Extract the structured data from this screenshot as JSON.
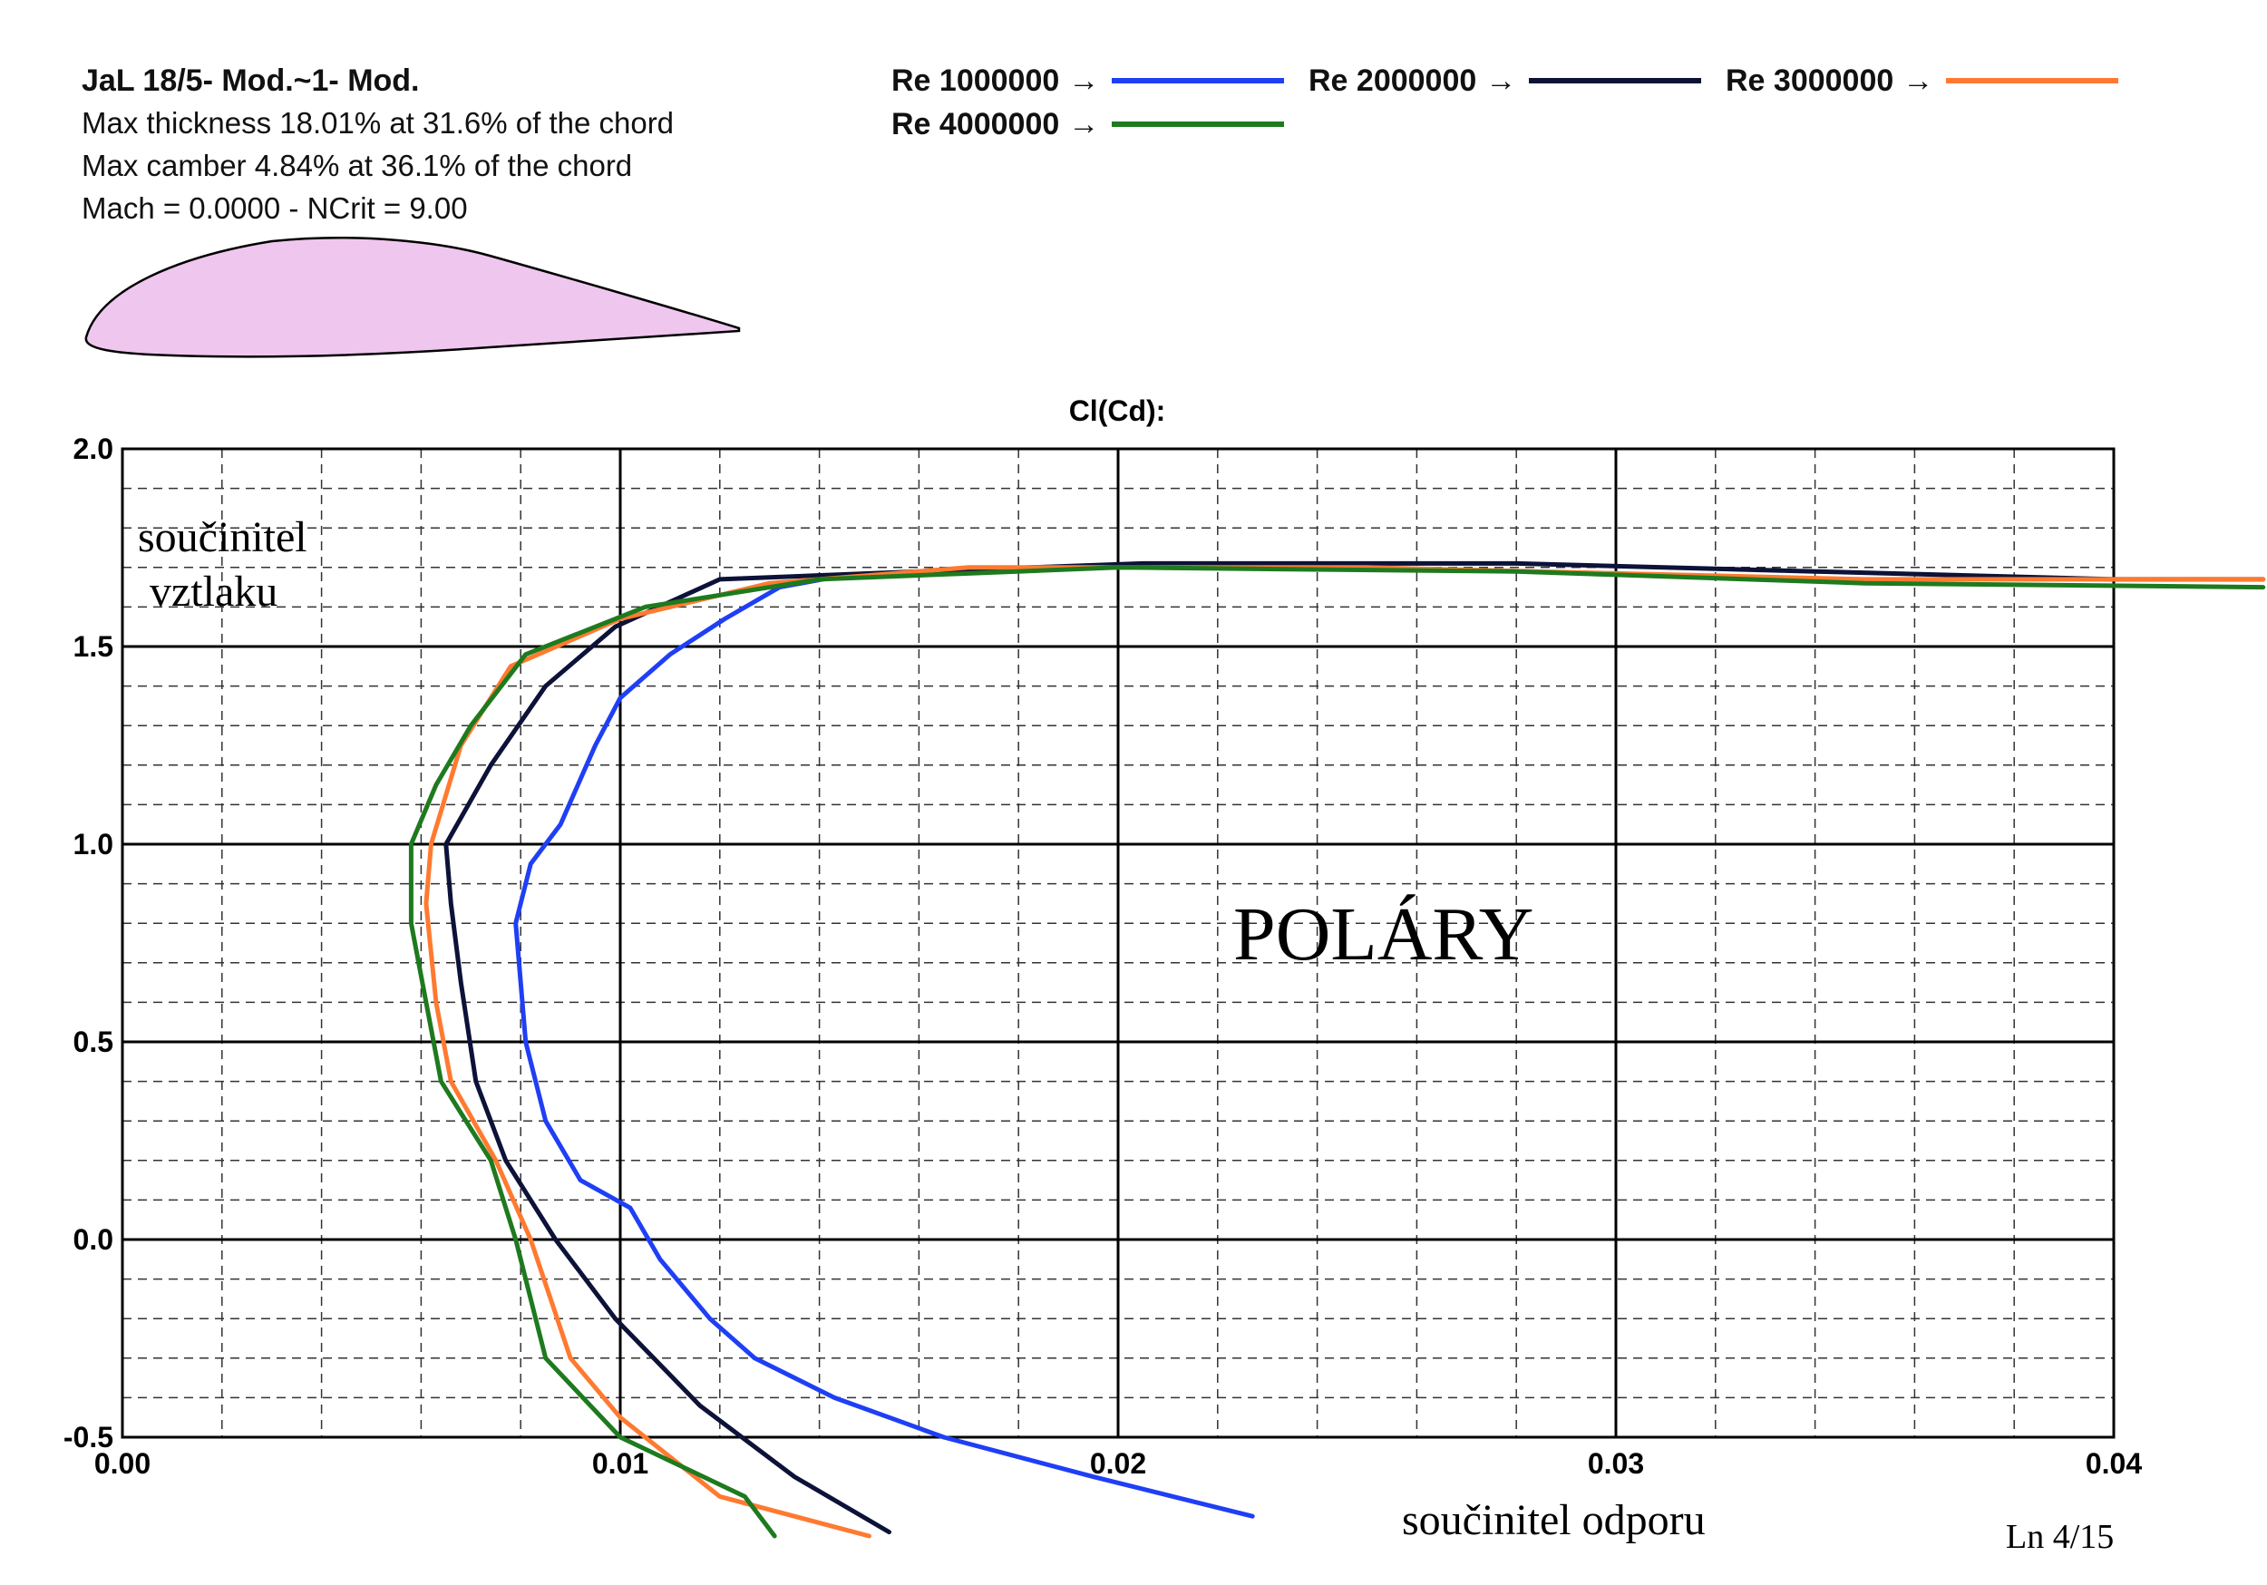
{
  "info": {
    "airfoil_name": "JaL 18/5- Mod.~1- Mod.",
    "thickness_line": "Max thickness 18.01% at 31.6% of the chord",
    "camber_line": "Max camber 4.84% at 36.1% of the chord",
    "conditions_line": "Mach = 0.0000 - NCrit = 9.00",
    "airfoil_fill": "#efc6ee"
  },
  "legend": [
    {
      "label": "Re 1000000",
      "color": "#1f3ff5"
    },
    {
      "label": "Re 2000000",
      "color": "#0c1238"
    },
    {
      "label": "Re 3000000",
      "color": "#ff7a30"
    },
    {
      "label": "Re 4000000",
      "color": "#1e7a1e"
    }
  ],
  "annotations": {
    "ylabel_line1": "součinitel",
    "ylabel_line2": "vztlaku",
    "xlabel": "součinitel  odporu",
    "center_label": "POLÁRY",
    "corner_label": "Ln 4/15"
  },
  "chart_data": {
    "type": "line",
    "title": "Cl(Cd):",
    "xlim": [
      0,
      0.04
    ],
    "ylim": [
      -0.5,
      2.0
    ],
    "x_ticks": [
      0.0,
      0.01,
      0.02,
      0.03,
      0.04
    ],
    "x_tick_labels": [
      "0.00",
      "0.01",
      "0.02",
      "0.03",
      "0.04"
    ],
    "y_ticks": [
      -0.5,
      0.0,
      0.5,
      1.0,
      1.5,
      2.0
    ],
    "y_tick_labels": [
      "-0.5",
      "0.0",
      "0.5",
      "1.0",
      "1.5",
      "2.0"
    ],
    "grid": true,
    "series": [
      {
        "name": "Re 1000000",
        "color": "#1f3ff5",
        "points": [
          [
            0.0227,
            -0.7
          ],
          [
            0.0195,
            -0.6
          ],
          [
            0.0165,
            -0.5
          ],
          [
            0.0143,
            -0.4
          ],
          [
            0.0127,
            -0.3
          ],
          [
            0.0118,
            -0.2
          ],
          [
            0.0108,
            -0.05
          ],
          [
            0.0102,
            0.08
          ],
          [
            0.0092,
            0.15
          ],
          [
            0.0085,
            0.3
          ],
          [
            0.0081,
            0.5
          ],
          [
            0.0079,
            0.8
          ],
          [
            0.0082,
            0.95
          ],
          [
            0.0088,
            1.05
          ],
          [
            0.0095,
            1.25
          ],
          [
            0.01,
            1.37
          ],
          [
            0.011,
            1.48
          ],
          [
            0.0121,
            1.57
          ],
          [
            0.0132,
            1.65
          ],
          [
            0.0145,
            1.68
          ],
          [
            0.0165,
            1.69
          ]
        ]
      },
      {
        "name": "Re 2000000",
        "color": "#0c1238",
        "points": [
          [
            0.0154,
            -0.74
          ],
          [
            0.0135,
            -0.6
          ],
          [
            0.0116,
            -0.42
          ],
          [
            0.0099,
            -0.2
          ],
          [
            0.0087,
            0.0
          ],
          [
            0.0077,
            0.2
          ],
          [
            0.0071,
            0.4
          ],
          [
            0.0068,
            0.65
          ],
          [
            0.0066,
            0.85
          ],
          [
            0.0065,
            1.0
          ],
          [
            0.0074,
            1.2
          ],
          [
            0.0085,
            1.4
          ],
          [
            0.0099,
            1.55
          ],
          [
            0.012,
            1.67
          ],
          [
            0.016,
            1.69
          ],
          [
            0.0205,
            1.71
          ],
          [
            0.028,
            1.71
          ],
          [
            0.034,
            1.69
          ],
          [
            0.04,
            1.67
          ],
          [
            0.043,
            1.67
          ]
        ]
      },
      {
        "name": "Re 3000000",
        "color": "#ff7a30",
        "points": [
          [
            0.015,
            -0.75
          ],
          [
            0.012,
            -0.65
          ],
          [
            0.01,
            -0.45
          ],
          [
            0.009,
            -0.3
          ],
          [
            0.0082,
            0.0
          ],
          [
            0.0075,
            0.2
          ],
          [
            0.0066,
            0.4
          ],
          [
            0.0063,
            0.6
          ],
          [
            0.0061,
            0.85
          ],
          [
            0.0062,
            1.0
          ],
          [
            0.0068,
            1.25
          ],
          [
            0.0078,
            1.45
          ],
          [
            0.01,
            1.57
          ],
          [
            0.013,
            1.66
          ],
          [
            0.017,
            1.7
          ],
          [
            0.025,
            1.7
          ],
          [
            0.035,
            1.67
          ],
          [
            0.043,
            1.67
          ]
        ]
      },
      {
        "name": "Re 4000000",
        "color": "#1e7a1e",
        "points": [
          [
            0.0131,
            -0.75
          ],
          [
            0.0125,
            -0.65
          ],
          [
            0.01,
            -0.5
          ],
          [
            0.0085,
            -0.3
          ],
          [
            0.0079,
            0.0
          ],
          [
            0.0074,
            0.2
          ],
          [
            0.0064,
            0.4
          ],
          [
            0.0061,
            0.6
          ],
          [
            0.0058,
            0.8
          ],
          [
            0.0058,
            1.0
          ],
          [
            0.0063,
            1.15
          ],
          [
            0.007,
            1.3
          ],
          [
            0.0081,
            1.48
          ],
          [
            0.0105,
            1.6
          ],
          [
            0.014,
            1.67
          ],
          [
            0.02,
            1.7
          ],
          [
            0.028,
            1.69
          ],
          [
            0.035,
            1.66
          ],
          [
            0.043,
            1.65
          ]
        ]
      }
    ]
  }
}
